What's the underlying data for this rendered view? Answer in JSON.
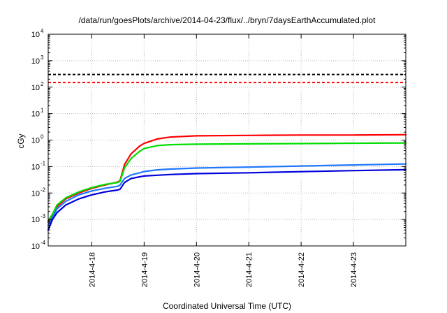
{
  "chart_data": {
    "type": "line",
    "title": "/data/run/goesPlots/archive/2014-04-23/flux/../bryn/7daysEarthAccumulated.plot",
    "xlabel": "Coordinated Universal Time (UTC)",
    "ylabel": "cGy",
    "y_scale": "log",
    "ylim": [
      0.0001,
      10000
    ],
    "y_ticks": [
      {
        "base": "10",
        "exp": "-4",
        "value": 0.0001
      },
      {
        "base": "10",
        "exp": "-3",
        "value": 0.001
      },
      {
        "base": "10",
        "exp": "-2",
        "value": 0.01
      },
      {
        "base": "10",
        "exp": "-1",
        "value": 0.1
      },
      {
        "base": "10",
        "exp": "0",
        "value": 1
      },
      {
        "base": "10",
        "exp": "1",
        "value": 10
      },
      {
        "base": "10",
        "exp": "2",
        "value": 100
      },
      {
        "base": "10",
        "exp": "3",
        "value": 1000
      },
      {
        "base": "10",
        "exp": "4",
        "value": 10000
      }
    ],
    "xlim": [
      "2014-04-17 04:00",
      "2014-04-24 00:00"
    ],
    "x_ticks": [
      "2014-4-18",
      "2014-4-19",
      "2014-4-20",
      "2014-4-21",
      "2014-4-22",
      "2014-4-23"
    ],
    "grid": true,
    "legend": "none",
    "reference_lines": [
      {
        "value": 300,
        "color": "#000000",
        "style": "dashed"
      },
      {
        "value": 150,
        "color": "#ff0000",
        "style": "dashed"
      }
    ],
    "x": [
      "2014-04-17 04:00",
      "2014-04-17 06:00",
      "2014-04-17 08:00",
      "2014-04-17 12:00",
      "2014-04-17 18:00",
      "2014-04-18 00:00",
      "2014-04-18 06:00",
      "2014-04-18 12:00",
      "2014-04-18 13:00",
      "2014-04-18 15:00",
      "2014-04-18 18:00",
      "2014-04-18 22:00",
      "2014-04-19 00:00",
      "2014-04-19 06:00",
      "2014-04-19 12:00",
      "2014-04-20 00:00",
      "2014-04-21 00:00",
      "2014-04-22 00:00",
      "2014-04-23 00:00",
      "2014-04-24 00:00"
    ],
    "series": [
      {
        "color": "#ff0000",
        "values": [
          0.0008,
          0.0015,
          0.003,
          0.006,
          0.01,
          0.015,
          0.02,
          0.026,
          0.03,
          0.12,
          0.3,
          0.6,
          0.75,
          1.1,
          1.3,
          1.45,
          1.5,
          1.55,
          1.55,
          1.6
        ]
      },
      {
        "color": "#00dd00",
        "values": [
          0.0009,
          0.0016,
          0.0035,
          0.0065,
          0.011,
          0.016,
          0.021,
          0.025,
          0.028,
          0.09,
          0.2,
          0.38,
          0.48,
          0.62,
          0.67,
          0.7,
          0.72,
          0.74,
          0.76,
          0.78
        ]
      },
      {
        "color": "#1e78ff",
        "values": [
          0.0006,
          0.0012,
          0.0025,
          0.0048,
          0.0085,
          0.012,
          0.015,
          0.018,
          0.02,
          0.035,
          0.048,
          0.058,
          0.065,
          0.075,
          0.08,
          0.088,
          0.095,
          0.105,
          0.115,
          0.125
        ]
      },
      {
        "color": "#0000dd",
        "values": [
          0.0004,
          0.001,
          0.0018,
          0.0035,
          0.006,
          0.0085,
          0.011,
          0.013,
          0.014,
          0.025,
          0.035,
          0.041,
          0.044,
          0.047,
          0.05,
          0.054,
          0.058,
          0.064,
          0.07,
          0.076
        ]
      }
    ]
  }
}
